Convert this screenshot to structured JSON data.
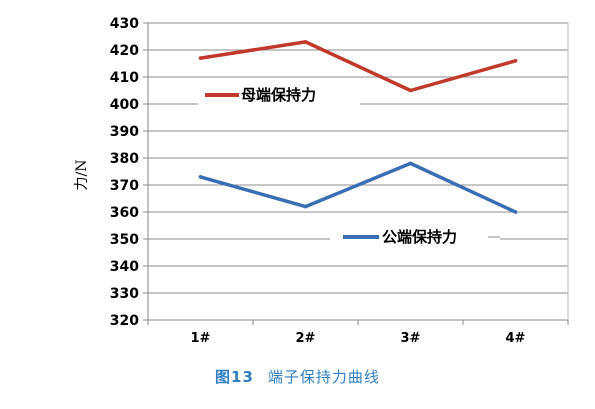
{
  "chart_data": {
    "type": "line",
    "categories": [
      "1#",
      "2#",
      "3#",
      "4#"
    ],
    "series": [
      {
        "name": "母端保持力",
        "values": [
          417,
          423,
          405,
          416
        ],
        "color": "#c0392b"
      },
      {
        "name": "公端保持力",
        "values": [
          373,
          362,
          378,
          360
        ],
        "color": "#3a6eb4"
      }
    ],
    "ylabel": "力/N",
    "xlabel": "",
    "ylim": [
      320,
      430
    ],
    "yticks": [
      320,
      330,
      340,
      350,
      360,
      370,
      380,
      390,
      400,
      410,
      420,
      430
    ],
    "grid": true,
    "legend": "inline labels"
  },
  "caption": {
    "number": "图13",
    "title": "端子保持力曲线"
  }
}
